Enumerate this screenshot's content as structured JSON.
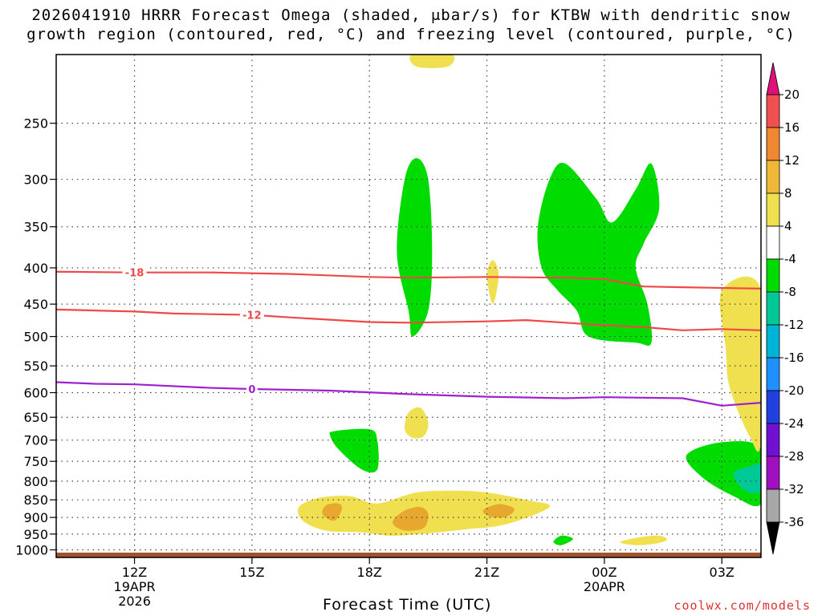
{
  "title": {
    "line1": "2026041910 HRRR Forecast Omega (shaded, μbar/s) for KTBW with dendritic snow",
    "line2": "growth region (contoured, red, °C) and freezing level (contoured, purple, °C)"
  },
  "credit": "coolwx.com/models",
  "chart_data": {
    "type": "contour",
    "xlabel": "Forecast Time (UTC)",
    "ylabel": "",
    "y_scale": "log-pressure",
    "ylim_hPa": [
      1025,
      200
    ],
    "xlim_hours": [
      10,
      28
    ],
    "x_ticks": [
      {
        "hour": 12,
        "label": "12Z",
        "date": "19APR",
        "year": "2026"
      },
      {
        "hour": 15,
        "label": "15Z"
      },
      {
        "hour": 18,
        "label": "18Z"
      },
      {
        "hour": 21,
        "label": "21Z"
      },
      {
        "hour": 24,
        "label": "00Z",
        "date": "20APR"
      },
      {
        "hour": 27,
        "label": "03Z"
      }
    ],
    "y_ticks": [
      250,
      300,
      350,
      400,
      450,
      500,
      550,
      600,
      650,
      700,
      750,
      800,
      850,
      900,
      950,
      1000
    ],
    "grid": true,
    "contours": [
      {
        "color": "#f04848",
        "label": "-18",
        "label_hour": 12.0,
        "points": [
          [
            10,
            405
          ],
          [
            12,
            406
          ],
          [
            14,
            406
          ],
          [
            16,
            408
          ],
          [
            18,
            412
          ],
          [
            19,
            413
          ],
          [
            21,
            412
          ],
          [
            23,
            413
          ],
          [
            24,
            415
          ],
          [
            25,
            425
          ],
          [
            26,
            426
          ],
          [
            28,
            428
          ]
        ]
      },
      {
        "color": "#f04848",
        "label": "-12",
        "label_hour": 15.0,
        "points": [
          [
            10,
            458
          ],
          [
            12,
            461
          ],
          [
            13,
            464
          ],
          [
            15,
            466
          ],
          [
            16,
            470
          ],
          [
            18,
            477
          ],
          [
            19,
            478
          ],
          [
            21,
            476
          ],
          [
            22,
            474
          ],
          [
            23,
            478
          ],
          [
            24,
            482
          ],
          [
            25,
            485
          ],
          [
            26,
            490
          ],
          [
            27,
            488
          ],
          [
            28,
            490
          ]
        ]
      },
      {
        "color": "#a020d0",
        "label": "0",
        "label_hour": 15.0,
        "points": [
          [
            10,
            580
          ],
          [
            11,
            583
          ],
          [
            12,
            584
          ],
          [
            14,
            591
          ],
          [
            15,
            593
          ],
          [
            17,
            596
          ],
          [
            19,
            603
          ],
          [
            21,
            608
          ],
          [
            23,
            611
          ],
          [
            24,
            609
          ],
          [
            26,
            611
          ],
          [
            27,
            626
          ],
          [
            28,
            620
          ]
        ]
      }
    ],
    "shaded_regions": [
      {
        "color": "#00dc00",
        "value_range": [
          -8,
          -4
        ],
        "points": [
          [
            19.0,
            460
          ],
          [
            18.7,
            380
          ],
          [
            18.9,
            300
          ],
          [
            19.2,
            280
          ],
          [
            19.5,
            300
          ],
          [
            19.6,
            380
          ],
          [
            19.5,
            460
          ],
          [
            19.1,
            500
          ]
        ]
      },
      {
        "color": "#00dc00",
        "value_range": [
          -8,
          -4
        ],
        "points": [
          [
            23.6,
            500
          ],
          [
            23.3,
            460
          ],
          [
            22.8,
            430
          ],
          [
            22.4,
            400
          ],
          [
            22.3,
            350
          ],
          [
            22.6,
            300
          ],
          [
            23.0,
            285
          ],
          [
            23.8,
            320
          ],
          [
            24.2,
            345
          ],
          [
            24.8,
            310
          ],
          [
            25.2,
            285
          ],
          [
            25.4,
            330
          ],
          [
            25.0,
            370
          ],
          [
            24.8,
            400
          ],
          [
            25.1,
            450
          ],
          [
            25.2,
            510
          ],
          [
            24.8,
            510
          ]
        ]
      },
      {
        "color": "#00dc00",
        "value_range": [
          -8,
          -4
        ],
        "points": [
          [
            17.2,
            720
          ],
          [
            17.0,
            690
          ],
          [
            17.1,
            680
          ],
          [
            18.0,
            676
          ],
          [
            18.2,
            700
          ],
          [
            18.2,
            770
          ],
          [
            17.8,
            770
          ]
        ]
      },
      {
        "color": "#00dc00",
        "value_range": [
          -8,
          -4
        ],
        "points": [
          [
            28,
            720
          ],
          [
            27.0,
            705
          ],
          [
            26.1,
            735
          ],
          [
            26.5,
            790
          ],
          [
            27.3,
            840
          ],
          [
            28,
            860
          ]
        ]
      },
      {
        "color": "#00dc00",
        "value_range": [
          -8,
          -4
        ],
        "points": [
          [
            22.7,
            975
          ],
          [
            22.9,
            955
          ],
          [
            23.2,
            965
          ],
          [
            22.9,
            985
          ]
        ]
      },
      {
        "color": "#00c896",
        "value_range": [
          -12,
          -8
        ],
        "points": [
          [
            27.3,
            780
          ],
          [
            27.8,
            760
          ],
          [
            28,
            760
          ],
          [
            28,
            825
          ],
          [
            27.6,
            825
          ]
        ]
      },
      {
        "color": "#f0e050",
        "value_range": [
          4,
          8
        ],
        "points": [
          [
            16.2,
            870
          ],
          [
            16.7,
            845
          ],
          [
            17.5,
            840
          ],
          [
            18.2,
            860
          ],
          [
            19.2,
            830
          ],
          [
            20.2,
            825
          ],
          [
            21.0,
            830
          ],
          [
            22.0,
            850
          ],
          [
            22.6,
            870
          ],
          [
            21.5,
            920
          ],
          [
            20.5,
            935
          ],
          [
            19.3,
            950
          ],
          [
            18.5,
            955
          ],
          [
            17.8,
            945
          ],
          [
            16.9,
            940
          ],
          [
            16.3,
            910
          ]
        ]
      },
      {
        "color": "#e8a830",
        "value_range": [
          8,
          12
        ],
        "points": [
          [
            16.8,
            890
          ],
          [
            16.9,
            865
          ],
          [
            17.2,
            860
          ],
          [
            17.3,
            875
          ],
          [
            17.1,
            910
          ]
        ]
      },
      {
        "color": "#e8a830",
        "value_range": [
          8,
          12
        ],
        "points": [
          [
            18.6,
            910
          ],
          [
            18.9,
            880
          ],
          [
            19.3,
            870
          ],
          [
            19.5,
            890
          ],
          [
            19.4,
            930
          ],
          [
            19.0,
            940
          ],
          [
            18.7,
            930
          ]
        ]
      },
      {
        "color": "#e8a830",
        "value_range": [
          8,
          12
        ],
        "points": [
          [
            20.9,
            880
          ],
          [
            21.3,
            862
          ],
          [
            21.7,
            875
          ],
          [
            21.5,
            898
          ],
          [
            21.1,
            898
          ]
        ]
      },
      {
        "color": "#f0e050",
        "value_range": [
          4,
          8
        ],
        "points": [
          [
            18.9,
            675
          ],
          [
            19.0,
            640
          ],
          [
            19.3,
            630
          ],
          [
            19.5,
            660
          ],
          [
            19.4,
            690
          ],
          [
            19.1,
            695
          ]
        ]
      },
      {
        "color": "#f0e050",
        "value_range": [
          4,
          8
        ],
        "points": [
          [
            21.0,
            410
          ],
          [
            21.15,
            390
          ],
          [
            21.3,
            410
          ],
          [
            21.15,
            450
          ]
        ]
      },
      {
        "color": "#f0e050",
        "value_range": [
          4,
          8
        ],
        "points": [
          [
            24.4,
            975
          ],
          [
            24.9,
            960
          ],
          [
            25.4,
            955
          ],
          [
            25.6,
            968
          ],
          [
            25.3,
            980
          ],
          [
            24.8,
            985
          ]
        ]
      },
      {
        "color": "#f0e050",
        "value_range": [
          4,
          8
        ],
        "points": [
          [
            27.0,
            430
          ],
          [
            28,
            430
          ],
          [
            28,
            700
          ],
          [
            27.7,
            690
          ],
          [
            27.2,
            590
          ],
          [
            27.1,
            520
          ]
        ]
      },
      {
        "color": "#f0e050",
        "value_range": [
          4,
          8
        ],
        "points": [
          [
            19.1,
            200
          ],
          [
            20.1,
            200
          ],
          [
            20.0,
            208
          ],
          [
            19.2,
            208
          ]
        ]
      }
    ],
    "ground": {
      "color": "#a0522d",
      "from_hPa": 1009,
      "to_hPa": 1025
    },
    "colorbar": {
      "bands": [
        {
          "color": "#f05050",
          "lo": 16,
          "hi": 20
        },
        {
          "color": "#f08830",
          "lo": 12,
          "hi": 16
        },
        {
          "color": "#f0b838",
          "lo": 8,
          "hi": 12
        },
        {
          "color": "#f0e050",
          "lo": 4,
          "hi": 8
        },
        {
          "color": "#ffffff",
          "lo": -4,
          "hi": 4
        },
        {
          "color": "#00dc00",
          "lo": -8,
          "hi": -4
        },
        {
          "color": "#00c896",
          "lo": -12,
          "hi": -8
        },
        {
          "color": "#00b4d8",
          "lo": -16,
          "hi": -12
        },
        {
          "color": "#1e90ff",
          "lo": -20,
          "hi": -16
        },
        {
          "color": "#2040e0",
          "lo": -24,
          "hi": -20
        },
        {
          "color": "#7010d0",
          "lo": -28,
          "hi": -24
        },
        {
          "color": "#a010c0",
          "lo": -32,
          "hi": -28
        },
        {
          "color": "#a8a8a8",
          "lo": -36,
          "hi": -32
        }
      ],
      "top_extend_color": "#e0107a",
      "bottom_extend_color": "#000000",
      "labels": [
        20,
        16,
        12,
        8,
        4,
        -4,
        -8,
        -12,
        -16,
        -20,
        -24,
        -28,
        -32,
        -36
      ]
    }
  }
}
